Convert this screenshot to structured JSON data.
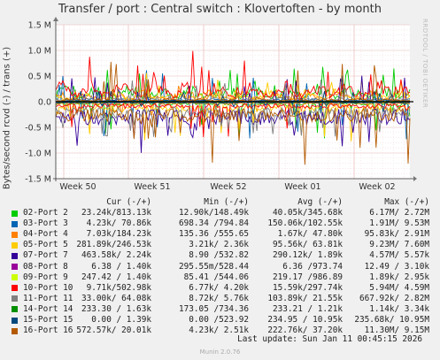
{
  "title": "Transfer / port : Central switch : Klovertoften - by month",
  "ylabel": "Bytes/second rcvd (-) / trans (+)",
  "side_text": "RRDTOOL / TOBI OETIKER",
  "footer": {
    "last_update": "Last update: Sun Jan 11 00:45:15 2026",
    "munin": "Munin 2.0.76"
  },
  "table_headers": [
    "Cur (-/+)",
    "Min (-/+)",
    "Avg (-/+)",
    "Max (-/+)"
  ],
  "chart_data": {
    "type": "line",
    "title": "Transfer / port : Central switch : Klovertoften - by month",
    "ylabel": "Bytes/second rcvd (-) / trans (+)",
    "xlabel": "",
    "x_ticks": [
      "Week 50",
      "Week 51",
      "Week 52",
      "Week 01",
      "Week 02"
    ],
    "y_ticks": [
      1.5,
      1.0,
      0.5,
      0.0,
      -0.5,
      -1.0,
      -1.5
    ],
    "y_tick_labels": [
      "1.5 M",
      "1.0 M",
      "0.5 M",
      "0.0",
      "-0.5 M",
      "-1.0 M",
      "-1.5 M"
    ],
    "ylim": [
      -1.5,
      1.5
    ],
    "y_unit": "M",
    "grid": true,
    "legend": "below",
    "series": [
      {
        "name": "02-Port 2",
        "color": "#00cc00",
        "cur": "23.24k/813.13k",
        "min": "12.90k/148.49k",
        "avg": "40.05k/345.68k",
        "max": "6.17M/ 2.72M"
      },
      {
        "name": "03-Port 3",
        "color": "#0066b3",
        "cur": "4.23k/ 70.86k",
        "min": "698.34 /794.84",
        "avg": "150.06k/102.55k",
        "max": "1.91M/ 9.53M"
      },
      {
        "name": "04-Port 4",
        "color": "#ff8000",
        "cur": "7.03k/184.23k",
        "min": "135.36 /555.65",
        "avg": "1.67k/ 47.80k",
        "max": "95.83k/ 2.91M"
      },
      {
        "name": "05-Port 5",
        "color": "#ffcc00",
        "cur": "281.89k/246.53k",
        "min": "3.21k/ 2.36k",
        "avg": "95.56k/ 63.81k",
        "max": "9.23M/ 7.60M"
      },
      {
        "name": "07-Port 7",
        "color": "#330099",
        "cur": "463.58k/ 2.24k",
        "min": "8.90 /532.82",
        "avg": "290.12k/ 1.89k",
        "max": "4.57M/ 5.57k"
      },
      {
        "name": "08-Port 8",
        "color": "#990099",
        "cur": "6.38 / 1.40k",
        "min": "295.55m/528.44",
        "avg": "6.36 /973.74",
        "max": "12.49 / 3.10k"
      },
      {
        "name": "09-Port 9",
        "color": "#ccff00",
        "cur": "247.42 / 1.40k",
        "min": "85.41 /544.06",
        "avg": "219.17 /986.89",
        "max": "1.89k/ 2.95k"
      },
      {
        "name": "10-Port 10",
        "color": "#ff0000",
        "cur": "9.71k/502.98k",
        "min": "6.77k/ 4.20k",
        "avg": "15.59k/297.74k",
        "max": "5.94M/ 4.59M"
      },
      {
        "name": "11-Port 11",
        "color": "#808080",
        "cur": "33.00k/ 64.08k",
        "min": "8.72k/ 5.76k",
        "avg": "103.89k/ 21.55k",
        "max": "667.92k/ 2.82M"
      },
      {
        "name": "14-Port 14",
        "color": "#008f00",
        "cur": "233.30 / 1.63k",
        "min": "173.05 /734.36",
        "avg": "233.21 / 1.21k",
        "max": "1.14k/ 3.34k"
      },
      {
        "name": "15-Port 15",
        "color": "#00487d",
        "cur": "0.00 / 1.39k",
        "min": "0.00 /523.92",
        "avg": "234.95 / 10.95k",
        "max": "235.68k/ 10.95M"
      },
      {
        "name": "16-Port 16",
        "color": "#b35a00",
        "cur": "572.57k/ 20.01k",
        "min": "4.23k/ 2.51k",
        "avg": "222.76k/ 37.20k",
        "max": "11.30M/ 9.15M"
      }
    ]
  }
}
